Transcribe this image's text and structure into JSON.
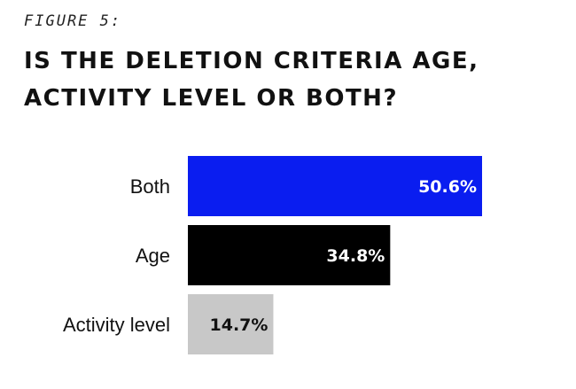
{
  "figure_label": "FIGURE 5:",
  "chart_data": {
    "type": "bar",
    "orientation": "horizontal",
    "title": "IS THE DELETION CRITERIA AGE, ACTIVITY LEVEL OR BOTH?",
    "categories": [
      "Both",
      "Age",
      "Activity level"
    ],
    "values": [
      50.6,
      34.8,
      14.7
    ],
    "value_labels": [
      "50.6%",
      "34.8%",
      "14.7%"
    ],
    "colors": [
      "#0a1df0",
      "#000000",
      "#c8c8c8"
    ],
    "label_colors": [
      "#ffffff",
      "#ffffff",
      "#111111"
    ],
    "xlim": [
      0,
      60
    ],
    "grid": false,
    "legend": "none"
  }
}
